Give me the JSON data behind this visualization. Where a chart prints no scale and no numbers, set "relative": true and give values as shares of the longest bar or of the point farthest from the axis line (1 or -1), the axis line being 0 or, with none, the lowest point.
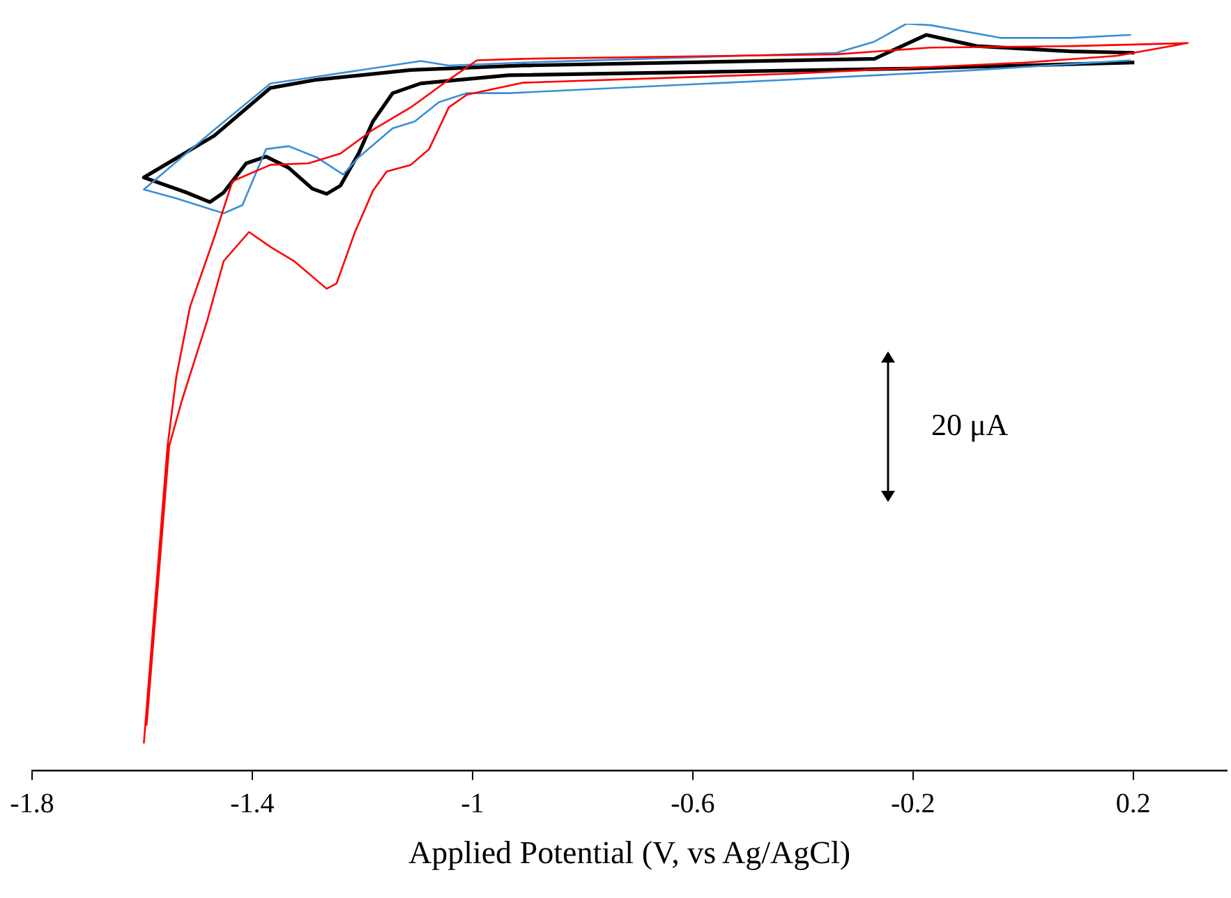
{
  "chart_data": {
    "type": "line",
    "relative": true,
    "xlabel": "Applied Potential (V, vs Ag/AgCl)",
    "xlim": [
      -1.8,
      0.37
    ],
    "xticks": [
      -1.8,
      -1.4,
      -1,
      -0.6,
      -0.2,
      0.2
    ],
    "grid": false,
    "legend": false,
    "annotations": [
      "20 μA"
    ],
    "series": [
      {
        "color": "#ff0000",
        "x": [
          -1.597,
          -1.554,
          -1.538,
          -1.513,
          -1.469,
          -1.436,
          -1.367,
          -1.298,
          -1.24,
          -1.181,
          -1.112,
          -1.043,
          -0.992,
          -0.908,
          -0.339,
          -0.168,
          0.087,
          0.299,
          0.171,
          0.003,
          -0.424,
          -0.908,
          -1.01,
          -1.043,
          -1.079,
          -1.112,
          -1.156,
          -1.181,
          -1.214,
          -1.247,
          -1.265,
          -1.324,
          -1.367,
          -1.406,
          -1.452,
          -1.482,
          -1.528,
          -1.551,
          -1.592
        ],
        "values": [
          0.036,
          0.434,
          0.527,
          0.621,
          0.714,
          0.789,
          0.811,
          0.813,
          0.826,
          0.858,
          0.888,
          0.925,
          0.951,
          0.953,
          0.959,
          0.968,
          0.97,
          0.974,
          0.957,
          0.948,
          0.933,
          0.921,
          0.905,
          0.888,
          0.832,
          0.811,
          0.802,
          0.776,
          0.72,
          0.652,
          0.645,
          0.682,
          0.701,
          0.721,
          0.682,
          0.602,
          0.495,
          0.434,
          0.06
        ]
      },
      {
        "color": "#3a8fd6",
        "x": [
          0.196,
          -0.084,
          -0.424,
          -0.934,
          -1.01,
          -1.061,
          -1.105,
          -1.145,
          -1.207,
          -1.235,
          -1.283,
          -1.334,
          -1.375,
          -1.418,
          -1.452,
          -1.538,
          -1.597,
          -1.469,
          -1.367,
          -1.283,
          -1.094,
          -1.043,
          -0.908,
          -0.339,
          -0.27,
          -0.212,
          -0.168,
          -0.041,
          0.087,
          0.196
        ],
        "values": [
          0.951,
          0.938,
          0.925,
          0.907,
          0.907,
          0.895,
          0.869,
          0.86,
          0.821,
          0.798,
          0.821,
          0.836,
          0.832,
          0.757,
          0.746,
          0.766,
          0.778,
          0.858,
          0.92,
          0.929,
          0.95,
          0.944,
          0.948,
          0.961,
          0.976,
          1.0,
          0.998,
          0.981,
          0.981,
          0.985
        ]
      },
      {
        "color": "#000000",
        "x": [
          0.202,
          -0.202,
          -0.934,
          -1.094,
          -1.145,
          -1.181,
          -1.207,
          -1.24,
          -1.265,
          -1.291,
          -1.334,
          -1.375,
          -1.411,
          -1.452,
          -1.477,
          -1.52,
          -1.597,
          -1.469,
          -1.367,
          -1.283,
          -1.112,
          -0.908,
          -0.27,
          -0.176,
          -0.084,
          0.087,
          0.202
        ],
        "values": [
          0.948,
          0.94,
          0.931,
          0.92,
          0.907,
          0.869,
          0.826,
          0.783,
          0.772,
          0.779,
          0.807,
          0.822,
          0.813,
          0.774,
          0.761,
          0.774,
          0.794,
          0.85,
          0.914,
          0.925,
          0.938,
          0.944,
          0.953,
          0.985,
          0.97,
          0.963,
          0.961
        ]
      }
    ]
  }
}
